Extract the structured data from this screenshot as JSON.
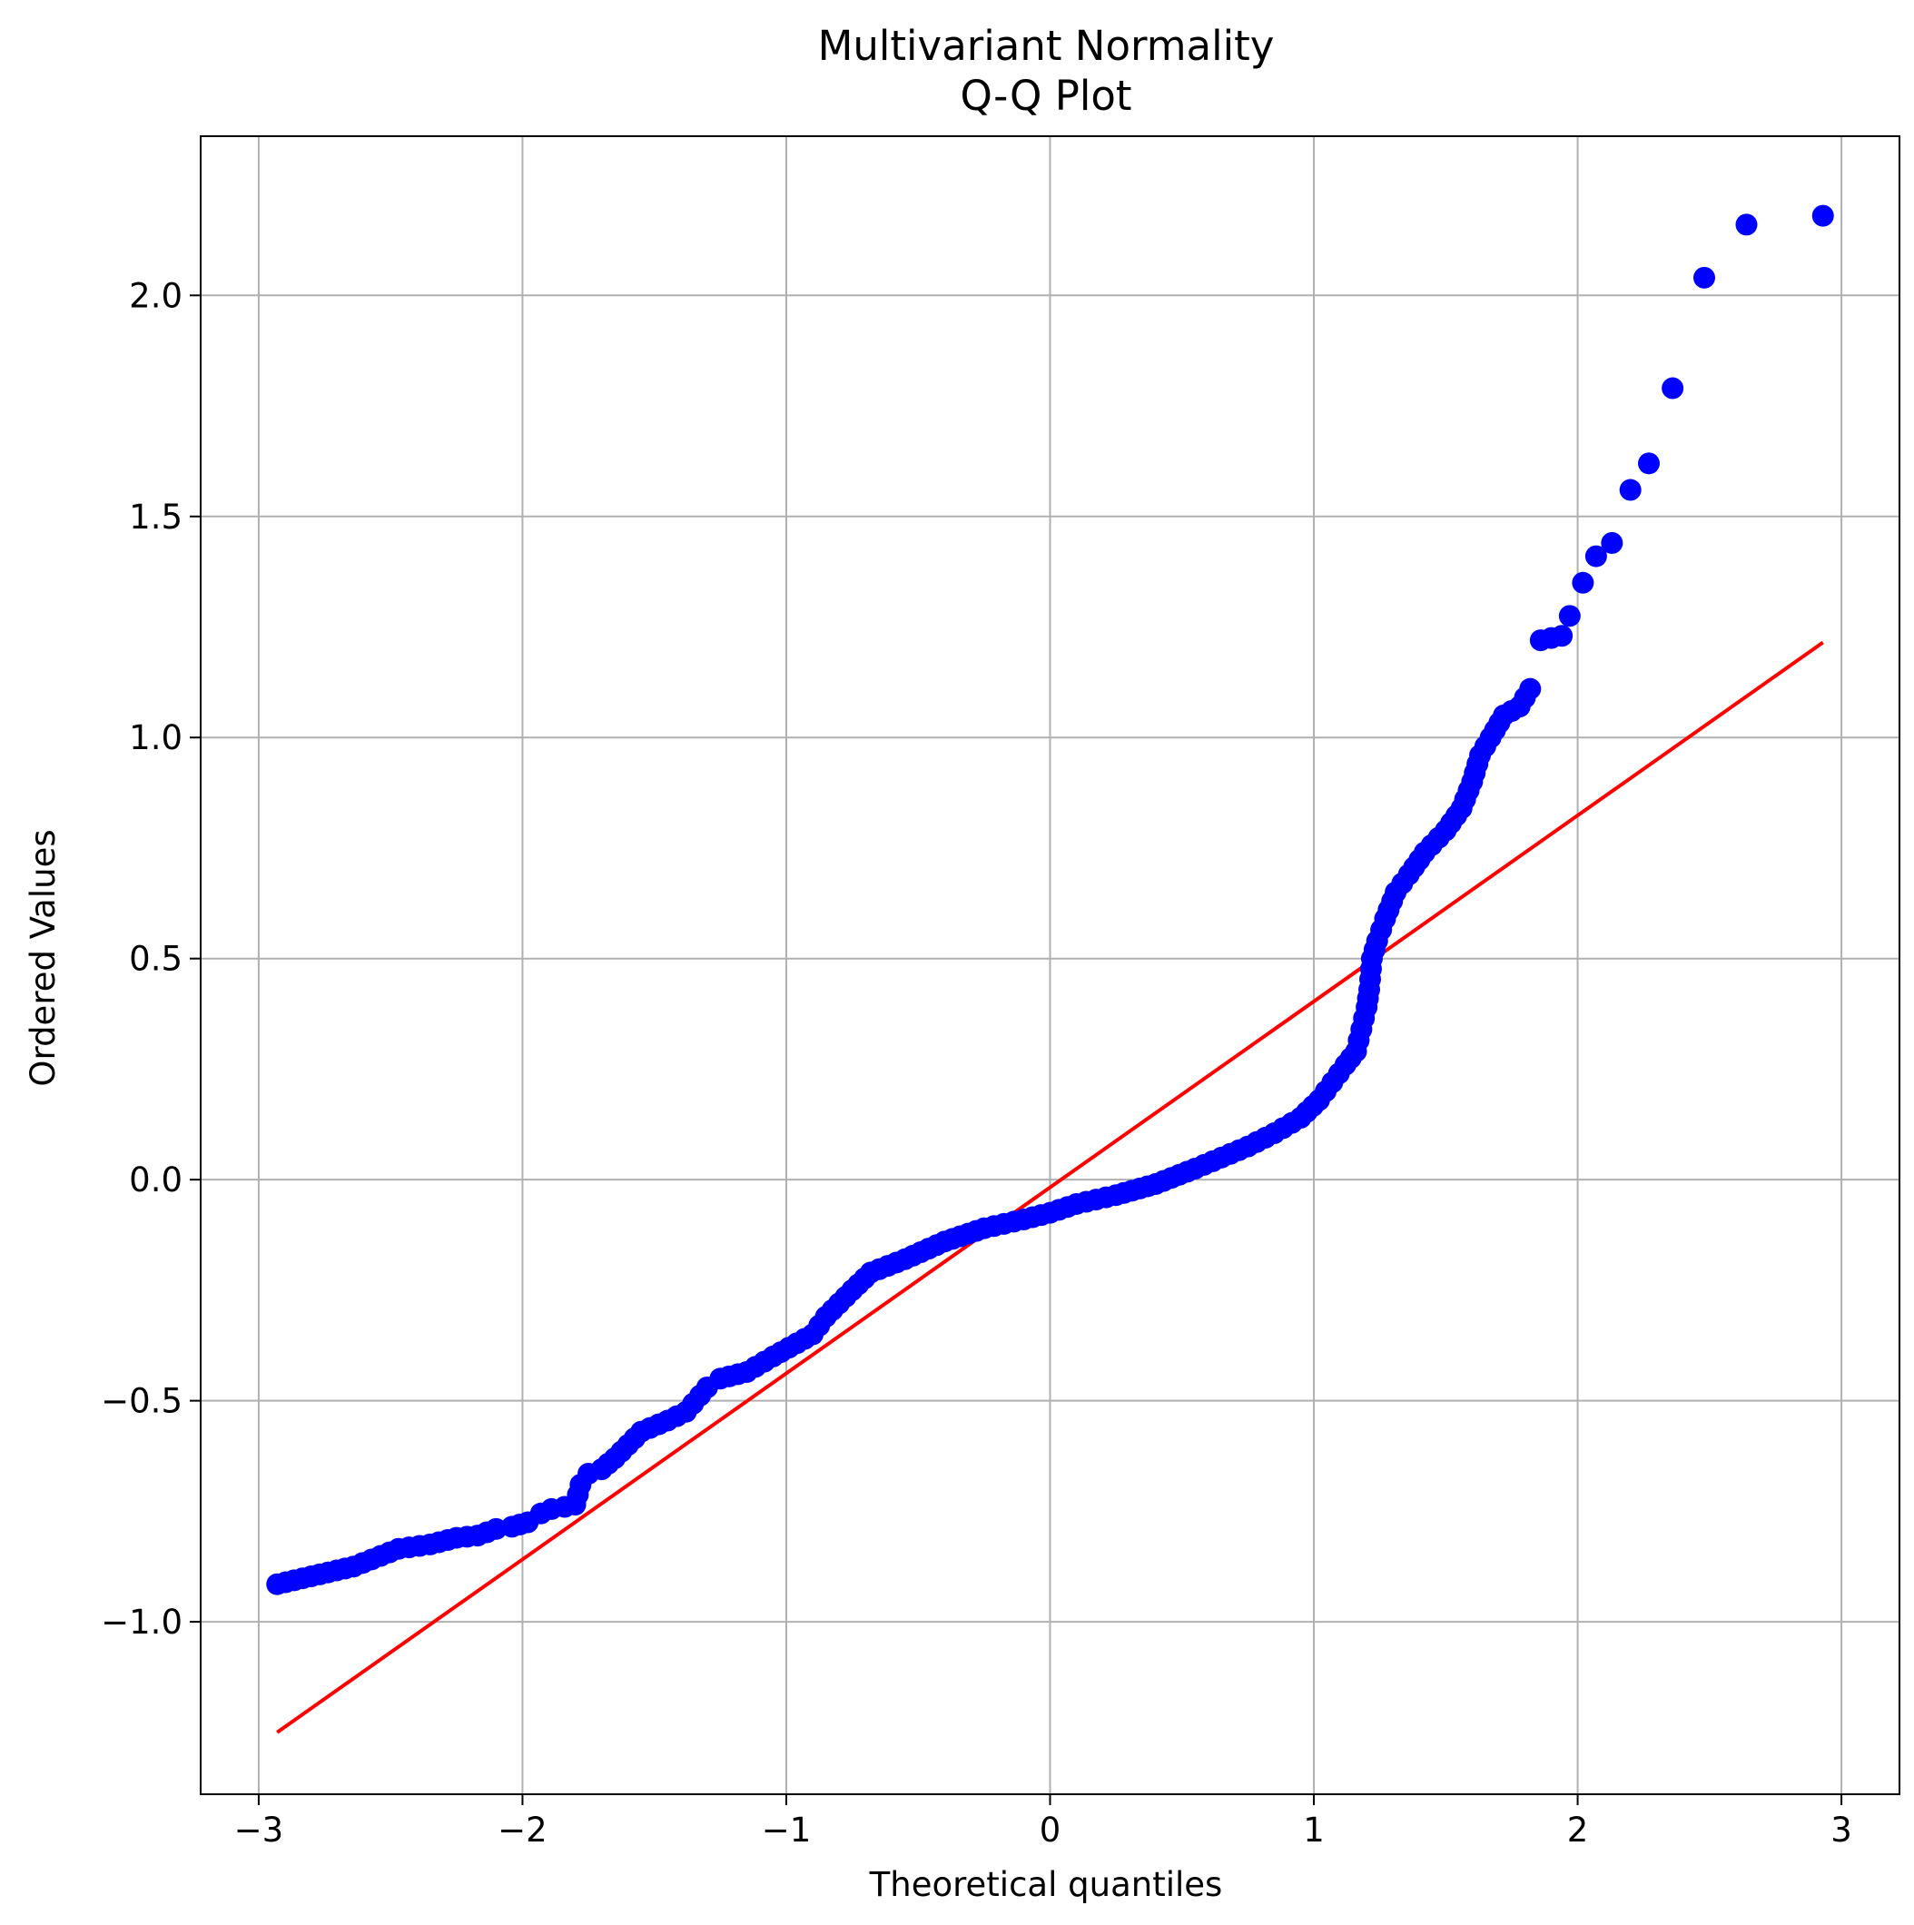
{
  "chart_data": {
    "type": "scatter",
    "title": "Multivariant Normality",
    "subtitle": "Q-Q Plot",
    "xlabel": "Theoretical quantiles",
    "ylabel": "Ordered Values",
    "xlim": [
      -3.22,
      3.22
    ],
    "ylim": [
      -1.39,
      2.36
    ],
    "xticks": [
      -3,
      -2,
      -1,
      0,
      1,
      2,
      3
    ],
    "xtick_labels": [
      "−3",
      "−2",
      "−1",
      "0",
      "1",
      "2",
      "3"
    ],
    "yticks": [
      -1.0,
      -0.5,
      0.0,
      0.5,
      1.0,
      1.5,
      2.0
    ],
    "ytick_labels": [
      "−1.0",
      "−0.5",
      "0.0",
      "0.5",
      "1.0",
      "1.5",
      "2.0"
    ],
    "grid": true,
    "colors": {
      "points": "#0000ff",
      "fit_line": "#ff0000",
      "grid": "#b0b0b0"
    },
    "series": [
      {
        "kind": "points",
        "anchors": [
          [
            -2.93,
            -0.915
          ],
          [
            -2.64,
            -0.875
          ],
          [
            -2.47,
            -0.835
          ],
          [
            -2.35,
            -0.825
          ],
          [
            -2.25,
            -0.81
          ],
          [
            -2.17,
            -0.805
          ],
          [
            -2.1,
            -0.79
          ],
          [
            -2.04,
            -0.785
          ],
          [
            -1.98,
            -0.775
          ],
          [
            -1.93,
            -0.755
          ],
          [
            -1.89,
            -0.745
          ],
          [
            -1.84,
            -0.74
          ],
          [
            -1.8,
            -0.735
          ],
          [
            -1.78,
            -0.69
          ],
          [
            -1.75,
            -0.665
          ],
          [
            -1.7,
            -0.655
          ],
          [
            -1.65,
            -0.63
          ],
          [
            -1.6,
            -0.6
          ],
          [
            -1.55,
            -0.57
          ],
          [
            -1.45,
            -0.545
          ],
          [
            -1.38,
            -0.525
          ],
          [
            -1.3,
            -0.47
          ],
          [
            -1.25,
            -0.45
          ],
          [
            -1.15,
            -0.435
          ],
          [
            -1.05,
            -0.4
          ],
          [
            -0.9,
            -0.35
          ],
          [
            -0.85,
            -0.31
          ],
          [
            -0.75,
            -0.25
          ],
          [
            -0.68,
            -0.21
          ],
          [
            -0.55,
            -0.18
          ],
          [
            -0.4,
            -0.14
          ],
          [
            -0.25,
            -0.11
          ],
          [
            -0.1,
            -0.09
          ],
          [
            0.0,
            -0.075
          ],
          [
            0.1,
            -0.055
          ],
          [
            0.25,
            -0.035
          ],
          [
            0.4,
            -0.01
          ],
          [
            0.55,
            0.025
          ],
          [
            0.65,
            0.05
          ],
          [
            0.75,
            0.075
          ],
          [
            0.85,
            0.105
          ],
          [
            0.95,
            0.14
          ],
          [
            1.02,
            0.18
          ],
          [
            1.07,
            0.22
          ],
          [
            1.12,
            0.26
          ],
          [
            1.16,
            0.29
          ],
          [
            1.18,
            0.34
          ],
          [
            1.2,
            0.39
          ],
          [
            1.21,
            0.43
          ],
          [
            1.22,
            0.5
          ],
          [
            1.24,
            0.54
          ],
          [
            1.27,
            0.59
          ],
          [
            1.31,
            0.65
          ],
          [
            1.36,
            0.69
          ],
          [
            1.42,
            0.74
          ],
          [
            1.5,
            0.79
          ],
          [
            1.56,
            0.84
          ],
          [
            1.6,
            0.9
          ],
          [
            1.63,
            0.96
          ],
          [
            1.67,
            1.0
          ],
          [
            1.72,
            1.05
          ],
          [
            1.78,
            1.07
          ],
          [
            1.82,
            1.11
          ]
        ],
        "values": [
          [
            1.86,
            1.22
          ],
          [
            1.9,
            1.225
          ],
          [
            1.94,
            1.23
          ],
          [
            1.97,
            1.275
          ],
          [
            2.02,
            1.35
          ],
          [
            2.07,
            1.41
          ],
          [
            2.13,
            1.44
          ],
          [
            2.2,
            1.56
          ],
          [
            2.27,
            1.62
          ],
          [
            2.36,
            1.79
          ],
          [
            2.48,
            2.04
          ],
          [
            2.64,
            2.16
          ],
          [
            2.93,
            2.18
          ]
        ]
      },
      {
        "kind": "line",
        "values": [
          [
            -2.93,
            -1.25
          ],
          [
            2.93,
            1.215
          ]
        ]
      }
    ]
  }
}
